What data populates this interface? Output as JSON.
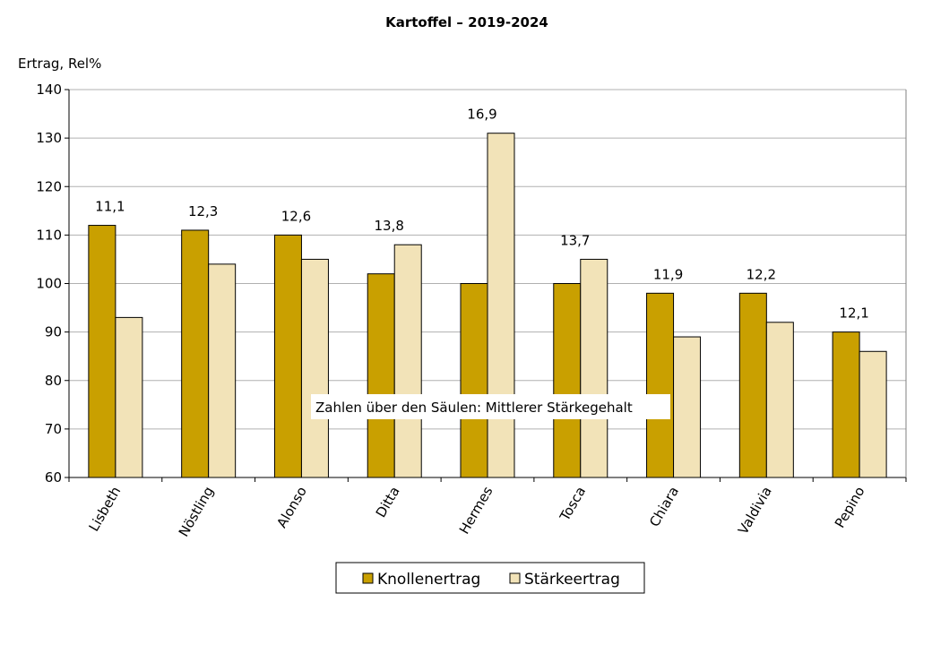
{
  "chart_data": {
    "type": "bar",
    "title": "Kartoffel – 2019-2024",
    "ylabel": "Ertrag, Rel%",
    "xlabel": "",
    "ylim": [
      60,
      140
    ],
    "yticks": [
      60,
      70,
      80,
      90,
      100,
      110,
      120,
      130,
      140
    ],
    "grid": true,
    "categories": [
      "Lisbeth",
      "Nöstling",
      "Alonso",
      "Ditta",
      "Hermes",
      "Tosca",
      "Chiara",
      "Valdivia",
      "Pepino"
    ],
    "series": [
      {
        "name": "Knollenertrag",
        "color": "#C9A000",
        "values": [
          112,
          111,
          110,
          102,
          100,
          100,
          98,
          98,
          90
        ]
      },
      {
        "name": "Stärkeertrag",
        "color": "#F2E3B8",
        "values": [
          93,
          104,
          105,
          108,
          131,
          105,
          89,
          92,
          86
        ]
      }
    ],
    "data_labels": [
      "11,1",
      "12,3",
      "12,6",
      "13,8",
      "16,9",
      "13,7",
      "11,9",
      "12,2",
      "12,1"
    ],
    "annotation": "Zahlen über den Säulen: Mittlerer Stärkegehalt",
    "legend_position": "bottom-center"
  }
}
